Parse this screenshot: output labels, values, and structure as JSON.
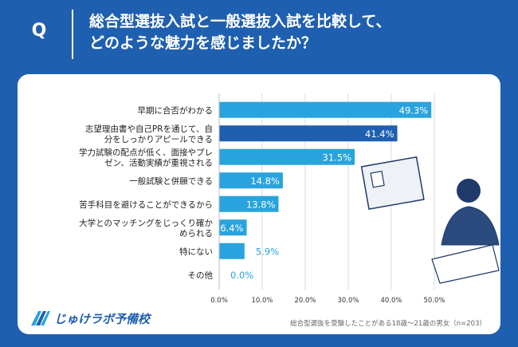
{
  "header": {
    "q_label": "Q",
    "question_line1": "総合型選抜入試と一般選抜入試を比較して、",
    "question_line2": "どのような魅力を感じましたか？"
  },
  "footer": {
    "note": "総合型選抜を受験したことがある18歳～21歳の男女（n=203）",
    "logo_text": "じゅけラボ予備校"
  },
  "colors": {
    "background": "#1f5fb0",
    "bar": "#29a3de",
    "bar_highlight": "#1f5fb0",
    "value_outside": "#29a3de"
  },
  "chart_data": {
    "type": "bar",
    "orientation": "horizontal",
    "categories": [
      [
        "早期に合否がわかる"
      ],
      [
        "志望理由書や自己PRを通じて、自",
        "分をしっかりアピールできる"
      ],
      [
        "学力試験の配点が低く、面接やプレ",
        "ゼン、活動実績が重視される"
      ],
      [
        "一般試験と併願できる"
      ],
      [
        "苦手科目を避けることができるから"
      ],
      [
        "大学とのマッチングをじっくり確か",
        "められる"
      ],
      [
        "特にない"
      ],
      [
        "その他"
      ]
    ],
    "values": [
      49.3,
      41.4,
      31.5,
      14.8,
      13.8,
      6.4,
      5.9,
      0.0
    ],
    "value_labels": [
      "49.3%",
      "41.4%",
      "31.5%",
      "14.8%",
      "13.8%",
      "6.4%",
      "5.9%",
      "0.0%"
    ],
    "highlight_index": 1,
    "xlim": [
      0,
      50
    ],
    "ticks": [
      0,
      10,
      20,
      30,
      40,
      50
    ],
    "tick_labels": [
      "0.0%",
      "10.0%",
      "20.0%",
      "30.0%",
      "40.0%",
      "50.0%"
    ],
    "grid": true
  }
}
